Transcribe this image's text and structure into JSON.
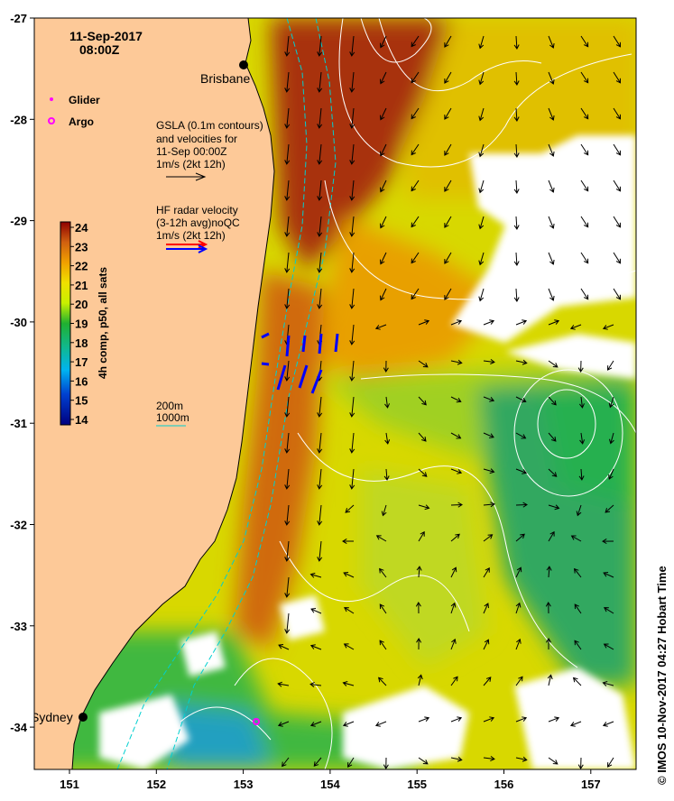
{
  "title": {
    "date": "11-Sep-2017",
    "time": "08:00Z"
  },
  "city_labels": {
    "brisbane": "Brisbane",
    "sydney": "Sydney"
  },
  "legend": {
    "glider": "Glider",
    "argo": "Argo"
  },
  "gsla_note": [
    "GSLA (0.1m contours)",
    "and velocities for",
    "11-Sep 00:00Z",
    "1m/s (2kt 12h)"
  ],
  "hf_note": [
    "HF radar velocity",
    "(3-12h avg)noQC",
    "1m/s (2kt 12h)"
  ],
  "depth_legend": [
    "200m",
    "1000m"
  ],
  "colorbar": {
    "label": "4h comp, p50, all sats",
    "ticks": [
      "24",
      "23",
      "22",
      "21",
      "20",
      "19",
      "18",
      "17",
      "16",
      "15",
      "14"
    ],
    "range": [
      14,
      24
    ]
  },
  "axes": {
    "lat_ticks": [
      "-27",
      "-28",
      "-29",
      "-30",
      "-31",
      "-32",
      "-33",
      "-34"
    ],
    "lon_ticks": [
      "151",
      "152",
      "153",
      "154",
      "155",
      "156",
      "157"
    ]
  },
  "credit": "© IMOS 10-Nov-2017 04:27 Hobart Time",
  "colors": {
    "land": "#fdc998",
    "warm": "#b03a10",
    "cool": "#2aa84a",
    "cloud": "#ffffff",
    "hf_red": "#ff0000",
    "hf_blue": "#0000ff",
    "glider": "#ff00ff"
  }
}
